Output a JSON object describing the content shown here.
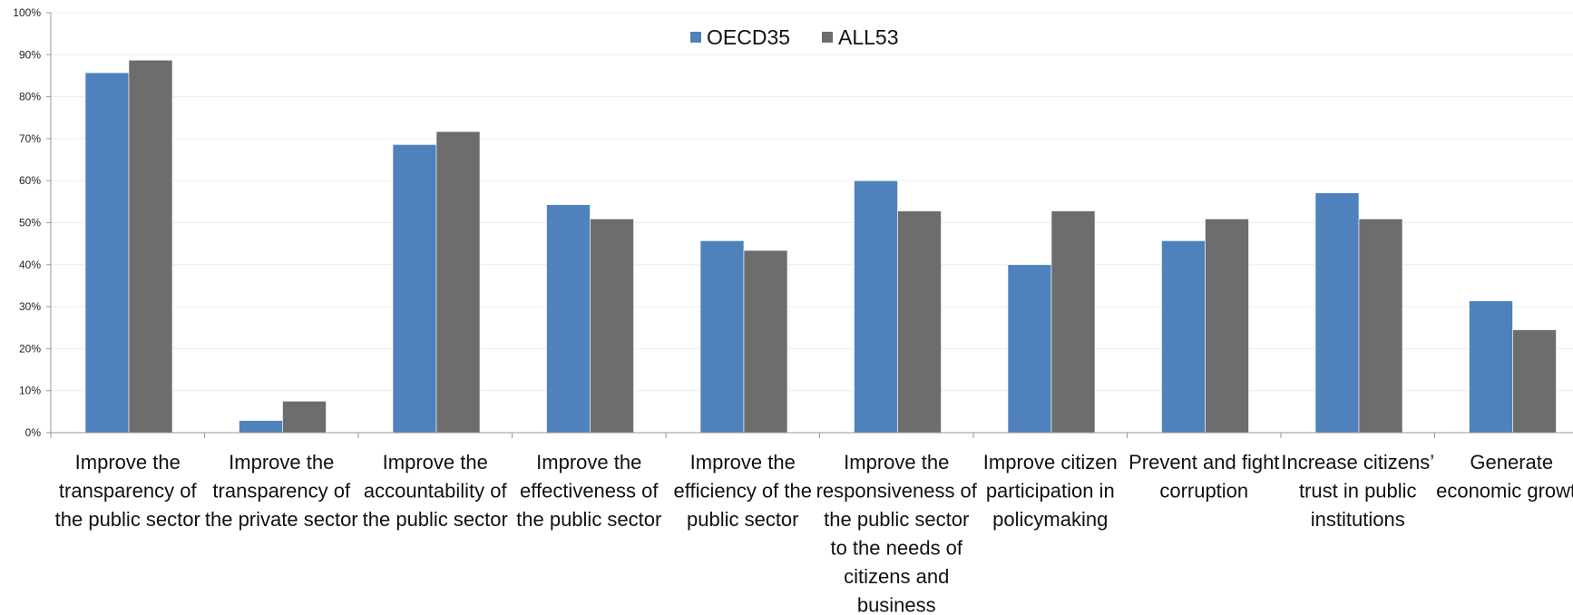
{
  "chart_data": {
    "type": "bar",
    "y_ticks": [
      "0%",
      "10%",
      "20%",
      "30%",
      "40%",
      "50%",
      "60%",
      "70%",
      "80%",
      "90%",
      "100%"
    ],
    "ylim": [
      0,
      100
    ],
    "grid": true,
    "legend_position": "top-center",
    "categories": [
      [
        "Improve the",
        "transparency of",
        "the public sector"
      ],
      [
        "Improve the",
        "transparency of",
        "the private sector"
      ],
      [
        "Improve the",
        "accountability of",
        "the public sector"
      ],
      [
        "Improve the",
        "effectiveness of",
        "the public sector"
      ],
      [
        "Improve the",
        "efficiency of the",
        "public sector"
      ],
      [
        "Improve the",
        "responsiveness of",
        "the public sector",
        "to the needs of",
        "citizens and",
        "business"
      ],
      [
        "Improve citizen",
        "participation in",
        "policymaking"
      ],
      [
        "Prevent and fight",
        "corruption"
      ],
      [
        "Increase citizens’",
        "trust in public",
        "institutions"
      ],
      [
        "Generate",
        "economic growth"
      ]
    ],
    "series": [
      {
        "name": "OECD35",
        "color": "#4f81bd",
        "values": [
          85.7,
          2.9,
          68.6,
          54.3,
          45.7,
          60.0,
          40.0,
          45.7,
          57.1,
          31.4
        ]
      },
      {
        "name": "ALL53",
        "color": "#6d6d6d",
        "values": [
          88.7,
          7.5,
          71.7,
          50.9,
          43.4,
          52.8,
          52.8,
          50.9,
          50.9,
          24.5
        ]
      }
    ]
  }
}
